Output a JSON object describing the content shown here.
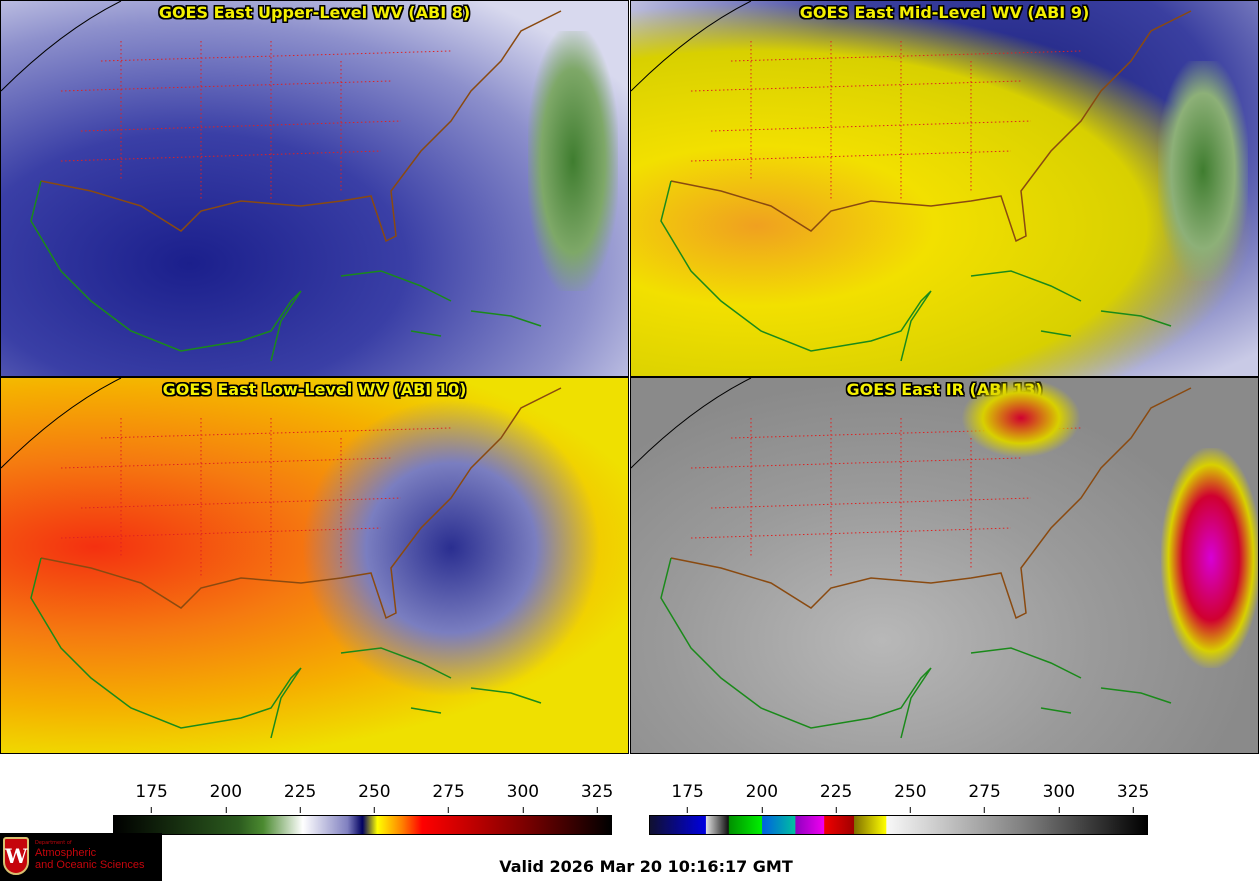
{
  "panels": [
    {
      "title": "GOES East Upper-Level WV (ABI 8)"
    },
    {
      "title": "GOES East Mid-Level WV (ABI 9)"
    },
    {
      "title": "GOES East Low-Level WV (ABI 10)"
    },
    {
      "title": "GOES East IR (ABI 13)"
    }
  ],
  "colorbars": {
    "range": [
      162,
      330
    ],
    "wv": {
      "ticks": [
        "175",
        "200",
        "225",
        "250",
        "275",
        "300",
        "325"
      ]
    },
    "ir": {
      "ticks": [
        "175",
        "200",
        "225",
        "250",
        "275",
        "300",
        "325"
      ]
    }
  },
  "logo": {
    "line1": "Department of",
    "line2": "Atmospheric",
    "line3": "and Oceanic Sciences",
    "crest": "W"
  },
  "valid_time": "Valid 2026 Mar 20 10:16:17 GMT",
  "colors": {
    "title": "#f4f000",
    "state_borders": "#e02020",
    "coast": "#1a8a1a",
    "country_borders": "#8a4a10"
  }
}
